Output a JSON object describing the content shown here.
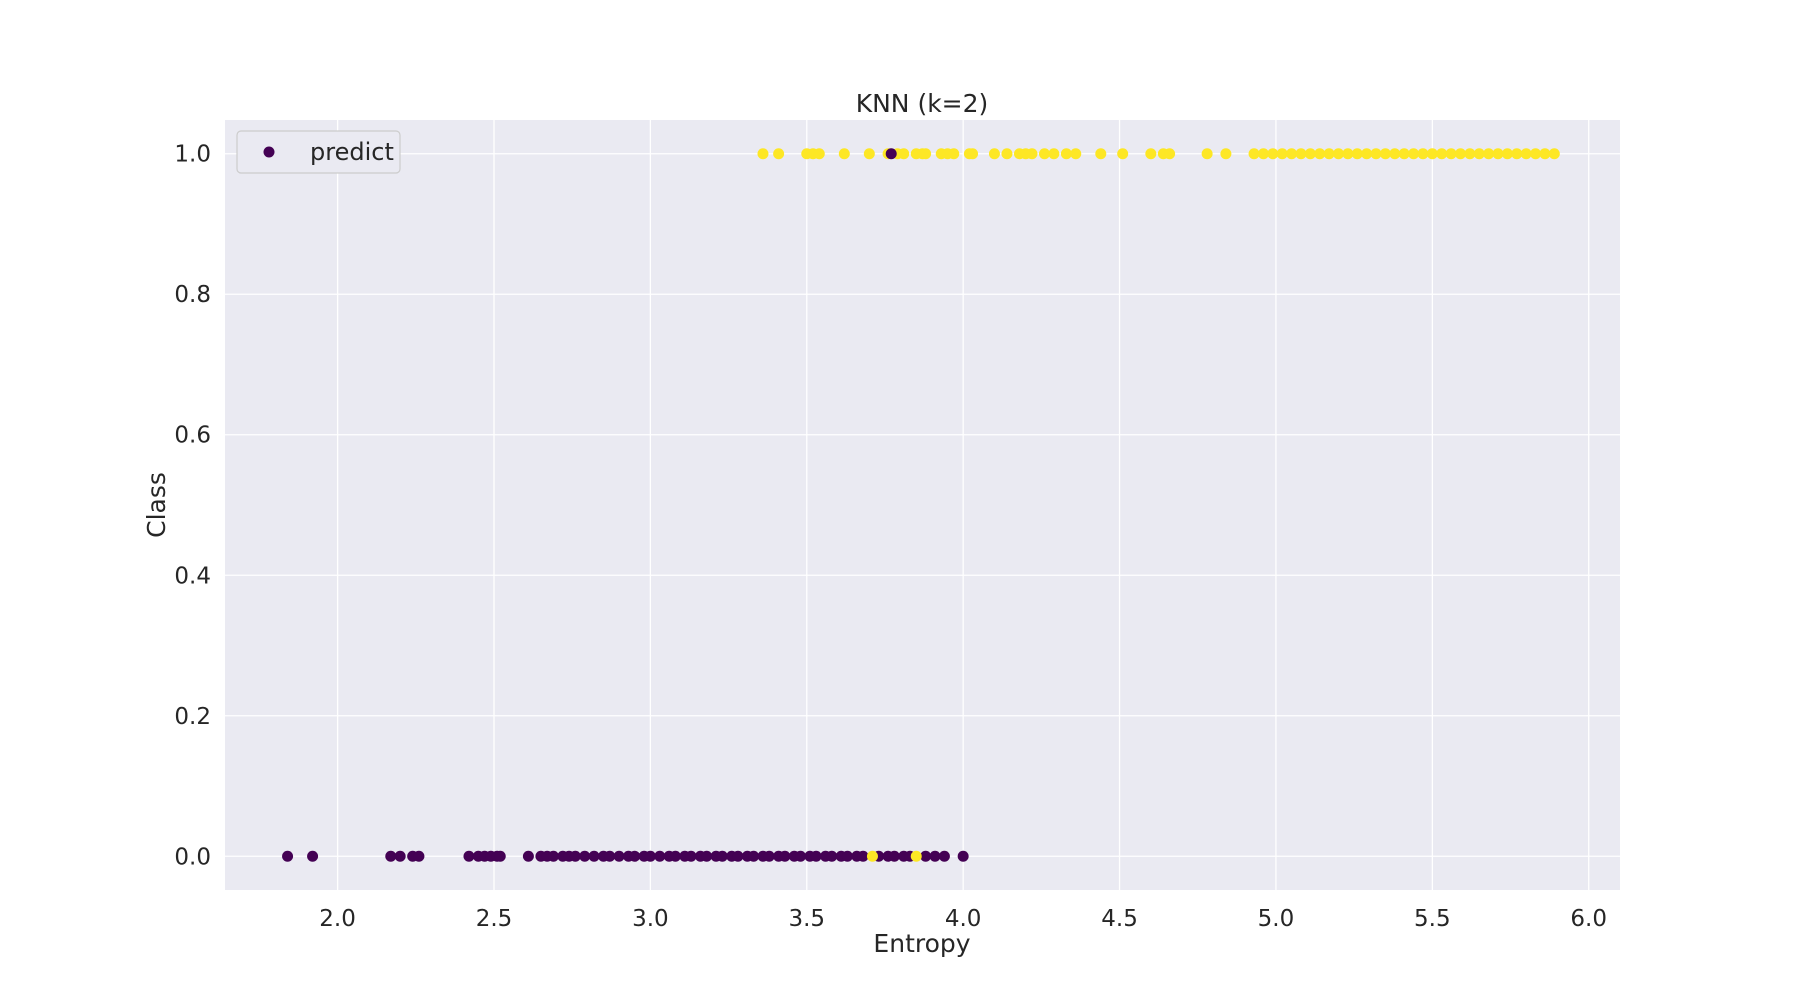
{
  "chart_data": {
    "type": "scatter",
    "title": "KNN (k=2)",
    "xlabel": "Entropy",
    "ylabel": "Class",
    "xlim": [
      1.64,
      6.1
    ],
    "ylim": [
      -0.048,
      1.048
    ],
    "xticks": [
      "2.0",
      "2.5",
      "3.0",
      "3.5",
      "4.0",
      "4.5",
      "5.0",
      "5.5",
      "6.0"
    ],
    "yticks": [
      "0.0",
      "0.2",
      "0.4",
      "0.6",
      "0.8",
      "1.0"
    ],
    "grid": true,
    "legend": {
      "label": "predict",
      "position": "upper-left"
    },
    "colors": {
      "class_0": "#440154",
      "class_1": "#fde725",
      "plot_bg": "#eaeaf2",
      "grid": "#ffffff"
    },
    "series": [
      {
        "name": "predict",
        "y": 0,
        "color_class": 0,
        "x": [
          1.84,
          1.92,
          2.17,
          2.2,
          2.24,
          2.26,
          2.42,
          2.45,
          2.47,
          2.49,
          2.51,
          2.52,
          2.61,
          2.65,
          2.67,
          2.69,
          2.72,
          2.74,
          2.76,
          2.79,
          2.82,
          2.85,
          2.87,
          2.9,
          2.93,
          2.95,
          2.98,
          3.0,
          3.03,
          3.06,
          3.08,
          3.11,
          3.13,
          3.16,
          3.18,
          3.21,
          3.23,
          3.26,
          3.28,
          3.31,
          3.33,
          3.36,
          3.38,
          3.41,
          3.43,
          3.46,
          3.48,
          3.51,
          3.53,
          3.56,
          3.58,
          3.61,
          3.63,
          3.66,
          3.68,
          3.73,
          3.76,
          3.78,
          3.81,
          3.83,
          3.88,
          3.91,
          3.94,
          4.0
        ]
      },
      {
        "name": "",
        "y": 0,
        "color_class": 1,
        "x": [
          3.71,
          3.85
        ]
      },
      {
        "name": "",
        "y": 1,
        "color_class": 1,
        "x": [
          3.36,
          3.41,
          3.5,
          3.52,
          3.54,
          3.62,
          3.7,
          3.76,
          3.79,
          3.81,
          3.85,
          3.87,
          3.88,
          3.93,
          3.95,
          3.97,
          4.02,
          4.03,
          4.1,
          4.14,
          4.18,
          4.2,
          4.22,
          4.26,
          4.29,
          4.33,
          4.36,
          4.44,
          4.51,
          4.6,
          4.64,
          4.66,
          4.78,
          4.84,
          4.93,
          4.96,
          4.99,
          5.02,
          5.05,
          5.08,
          5.11,
          5.14,
          5.17,
          5.2,
          5.23,
          5.26,
          5.29,
          5.32,
          5.35,
          5.38,
          5.41,
          5.44,
          5.47,
          5.5,
          5.53,
          5.56,
          5.59,
          5.62,
          5.65,
          5.68,
          5.71,
          5.74,
          5.77,
          5.8,
          5.83,
          5.86,
          5.89
        ]
      },
      {
        "name": "",
        "y": 1,
        "color_class": 0,
        "x": [
          3.77
        ]
      }
    ]
  }
}
